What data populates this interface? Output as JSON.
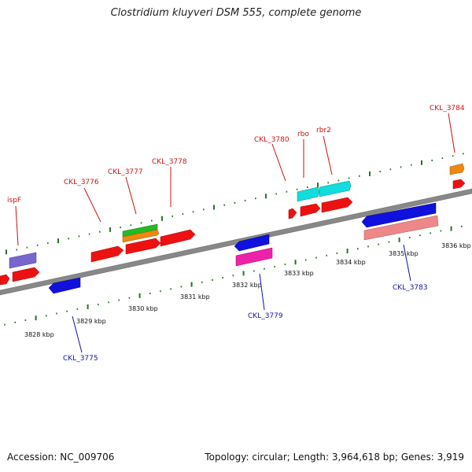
{
  "title": "Clostridium kluyveri DSM 555, complete genome",
  "accession": "Accession: NC_009706",
  "summary": "Topology: circular; Length: 3,964,618 bp; Genes: 3,919",
  "colors": {
    "red": "#ee1111",
    "blue": "#1111dd",
    "cyan": "#11dddd",
    "green": "#22bb22",
    "orange": "#ee8811",
    "purple": "#7766cc",
    "magenta": "#ee22aa",
    "pink": "#ee8888",
    "backbone": "#888888",
    "tick": "#227722",
    "label_forward": "#cc1111",
    "label_reverse": "#1111aa"
  },
  "scale_labels": [
    "3828 kbp",
    "3829 kbp",
    "3830 kbp",
    "3831 kbp",
    "3832 kbp",
    "3833 kbp",
    "3834 kbp",
    "3835 kbp",
    "3836 kbp"
  ],
  "gene_labels": {
    "ispF": "ispF",
    "ckl3776": "CKL_3776",
    "ckl3777": "CKL_3777",
    "ckl3778": "CKL_3778",
    "ckl3780": "CKL_3780",
    "rbo": "rbo",
    "rbr2": "rbr2",
    "ckl3784": "CKL_3784",
    "ckl3775": "CKL_3775",
    "ckl3779": "CKL_3779",
    "ckl3783": "CKL_3783"
  }
}
